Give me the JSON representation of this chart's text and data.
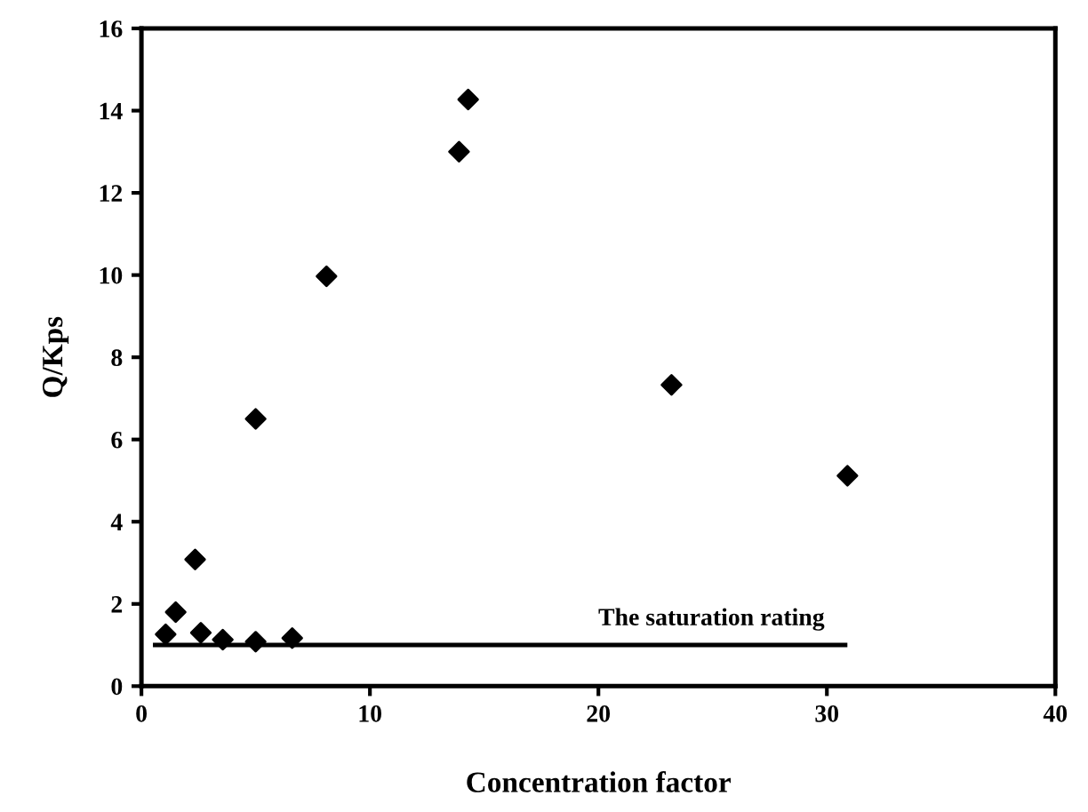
{
  "chart_data": {
    "type": "scatter",
    "xlabel": "Concentration factor",
    "ylabel": "Q/Kps",
    "xlim": [
      0,
      40
    ],
    "ylim": [
      0,
      16
    ],
    "xticks": [
      0,
      10,
      20,
      30,
      40
    ],
    "yticks": [
      0,
      2,
      4,
      6,
      8,
      10,
      12,
      14,
      16
    ],
    "grid": false,
    "legend": false,
    "marker": "diamond",
    "series": [
      {
        "color": "#000000",
        "x": [
          1.06,
          1.5,
          2.35,
          2.6,
          3.56,
          5.0,
          6.6,
          5.0,
          8.1,
          13.9,
          14.3,
          23.2,
          30.9
        ],
        "values": [
          1.26,
          1.8,
          3.08,
          1.3,
          1.13,
          1.08,
          1.17,
          6.5,
          9.97,
          13.0,
          14.27,
          7.33,
          5.12
        ]
      },
      {
        "type": "line",
        "name": "The saturation rating",
        "color": "#000000",
        "line_style": "solid",
        "marker": "none",
        "x": [
          0.6,
          30.8
        ],
        "values": [
          1,
          1
        ]
      }
    ]
  }
}
